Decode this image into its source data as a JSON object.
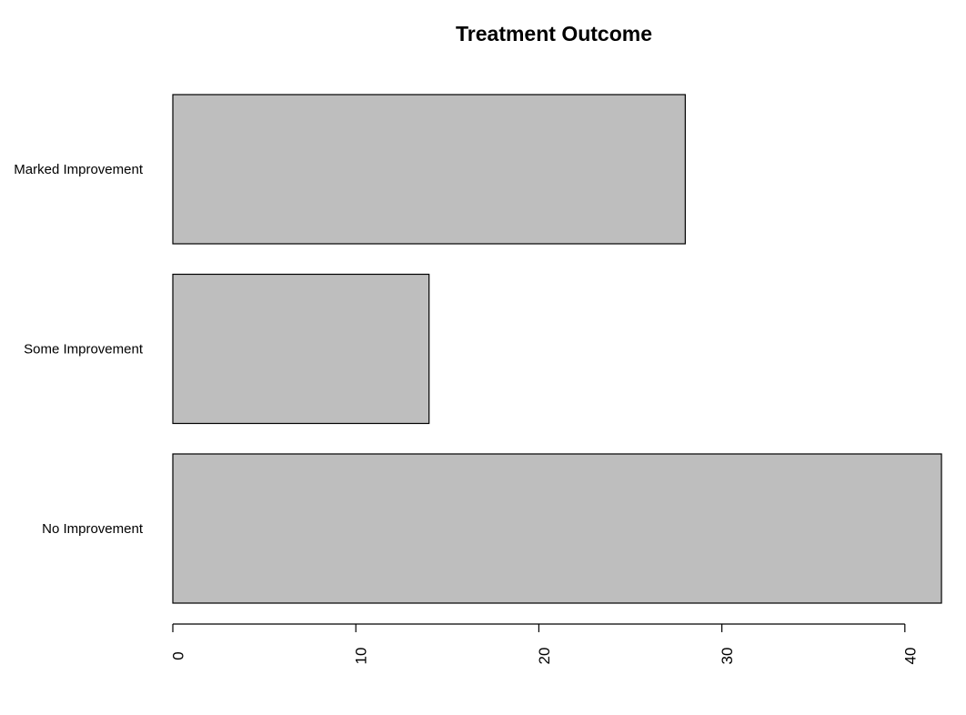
{
  "chart_data": {
    "type": "bar",
    "orientation": "horizontal",
    "title": "Treatment Outcome",
    "xlabel": "",
    "ylabel": "",
    "categories": [
      "No Improvement",
      "Some Improvement",
      "Marked Improvement"
    ],
    "values": [
      42,
      14,
      28
    ],
    "xlim": [
      0,
      42
    ],
    "ticks": [
      "0",
      "10",
      "20",
      "30",
      "40"
    ],
    "tick_orientation": "rotated-vertical",
    "grid": false,
    "legend": "none",
    "bar_color": "#bebebe",
    "bar_border_color": "#000000"
  }
}
